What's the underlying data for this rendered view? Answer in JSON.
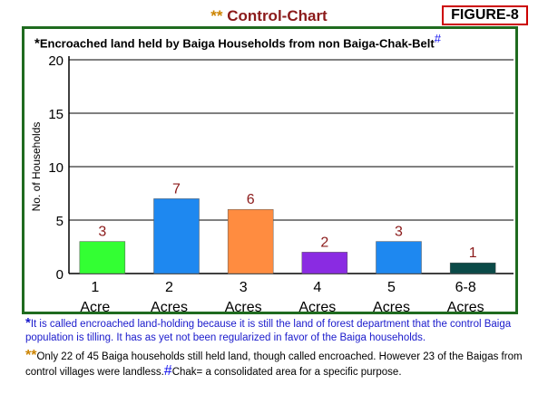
{
  "header": {
    "stars": "**",
    "title": "Control-Chart",
    "figure": "FIGURE-8"
  },
  "subtitle": {
    "star": "*",
    "text": "Encroached land held by Baiga Households from non Baiga-Chak-Belt",
    "hash": "#"
  },
  "notes": {
    "note1_star": "*",
    "note1_text": "It is called encroached land-holding because it is still the land of forest department that the control Baiga population is tilling. It has as yet not been regularized in favor of the Baiga households.",
    "note2_star": "**",
    "note2_text": "Only 22 of 45 Baiga households still held land, though called encroached. However 23 of the Baigas from control villages were landless.",
    "note2_hash": "#",
    "note2_tail": "Chak= a consolidated area for a specific purpose."
  },
  "chart_data": {
    "type": "bar",
    "ylabel": "No. of Households",
    "xlabel": "",
    "ylim": [
      0,
      20
    ],
    "yticks": [
      0,
      5,
      10,
      15,
      20
    ],
    "grid": true,
    "categories": [
      {
        "num": "1",
        "unit": "Acre"
      },
      {
        "num": "2",
        "unit": "Acres"
      },
      {
        "num": "3",
        "unit": "Acres"
      },
      {
        "num": "4",
        "unit": "Acres"
      },
      {
        "num": "5",
        "unit": "Acres"
      },
      {
        "num": "6-8",
        "unit": "Acres"
      }
    ],
    "values": [
      3,
      7,
      6,
      2,
      3,
      1
    ],
    "data_labels": [
      "3",
      "7",
      "6",
      "2",
      "3",
      "1"
    ],
    "colors": [
      "#33ff33",
      "#1e88f0",
      "#ff8c40",
      "#8a2be2",
      "#1e88f0",
      "#0b4a48"
    ]
  }
}
